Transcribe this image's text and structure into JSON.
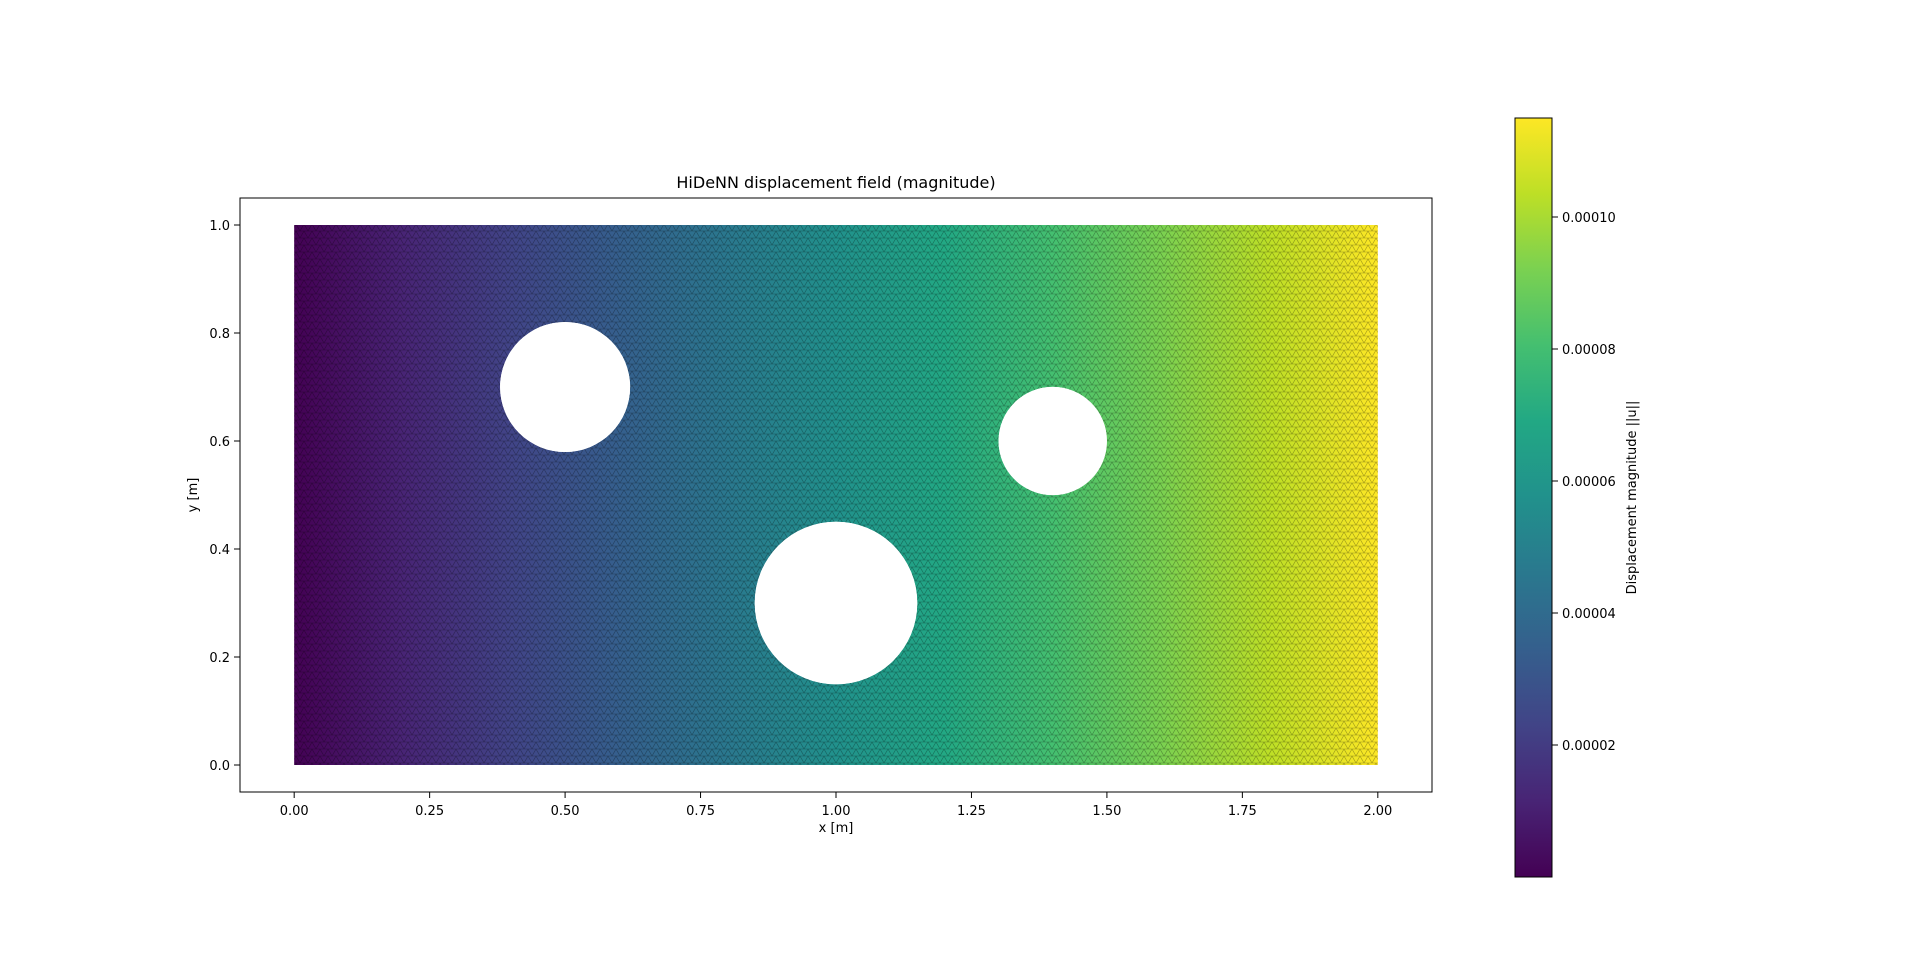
{
  "chart_data": {
    "type": "heatmap",
    "title": "HiDeNN displacement field (magnitude)",
    "xlabel": "x [m]",
    "ylabel": "y [m]",
    "xlim": [
      -0.1,
      2.1
    ],
    "ylim": [
      -0.05,
      1.05
    ],
    "xticks": [
      0.0,
      0.25,
      0.5,
      0.75,
      1.0,
      1.25,
      1.5,
      1.75,
      2.0
    ],
    "xtick_labels": [
      "0.00",
      "0.25",
      "0.50",
      "0.75",
      "1.00",
      "1.25",
      "1.50",
      "1.75",
      "2.00"
    ],
    "yticks": [
      0.0,
      0.2,
      0.4,
      0.6,
      0.8,
      1.0
    ],
    "ytick_labels": [
      "0.0",
      "0.2",
      "0.4",
      "0.6",
      "0.8",
      "1.0"
    ],
    "domain": {
      "x": [
        0.0,
        2.0
      ],
      "y": [
        0.0,
        1.0
      ]
    },
    "holes": [
      {
        "cx": 0.5,
        "cy": 0.7,
        "r": 0.12
      },
      {
        "cx": 1.4,
        "cy": 0.6,
        "r": 0.1
      },
      {
        "cx": 1.0,
        "cy": 0.3,
        "r": 0.15
      }
    ],
    "field": "Displacement magnitude increases roughly linearly with x",
    "colormap": "viridis",
    "colorbar": {
      "label": "Displacement magnitude ||u||",
      "vmin": 0.0,
      "vmax": 0.000115,
      "ticks": [
        2e-05,
        4e-05,
        6e-05,
        8e-05,
        0.0001
      ],
      "tick_labels": [
        "0.00002",
        "0.00004",
        "0.00006",
        "0.00008",
        "0.00010"
      ]
    },
    "mesh": "triangular",
    "grid": false
  }
}
